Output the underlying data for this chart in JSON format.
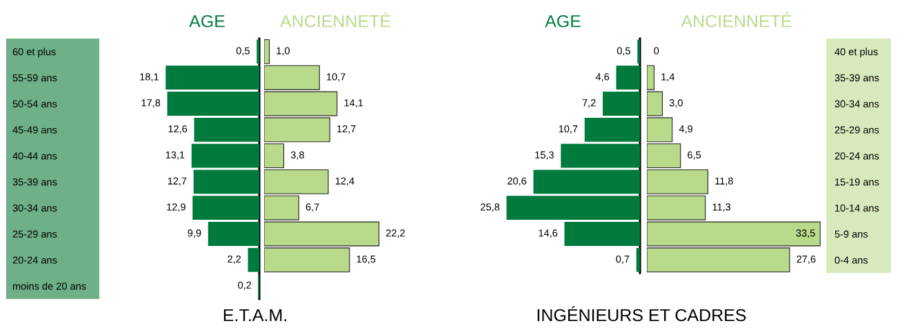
{
  "chart_data": [
    {
      "type": "bar",
      "orientation": "horizontal",
      "title": "AGE",
      "xlabel": "E.T.A.M.",
      "tick_labels": "y",
      "categories": [
        "60 et plus",
        "55-59 ans",
        "50-54 ans",
        "45-49 ans",
        "40-44 ans",
        "35-39 ans",
        "30-34 ans",
        "25-29 ans",
        "20-24 ans",
        "moins de 20 ans"
      ],
      "series": [
        {
          "color": "#007a3d",
          "values": [
            0.5,
            18.1,
            17.8,
            12.6,
            13.1,
            12.7,
            12.9,
            9.9,
            2.2,
            0.2
          ],
          "value_labels": [
            "0,5",
            "18,1",
            "17,8",
            "12,6",
            "13,1",
            "12,7",
            "12,9",
            "9,9",
            "2,2",
            "0,2"
          ]
        }
      ]
    },
    {
      "type": "bar",
      "orientation": "horizontal",
      "title": "ANCIENNETÉ",
      "tick_labels": false,
      "categories": [
        null,
        null,
        null,
        null,
        null,
        null,
        null,
        null,
        null,
        null
      ],
      "series": [
        {
          "color": "#b9da8b",
          "values": [
            1.0,
            10.7,
            14.1,
            12.7,
            3.8,
            12.4,
            6.7,
            22.2,
            16.5,
            null
          ],
          "value_labels": [
            "1,0",
            "10,7",
            "14,1",
            "12,7",
            "3,8",
            "12,4",
            "6,7",
            "22,2",
            "16,5",
            null
          ]
        }
      ]
    },
    {
      "type": "bar",
      "orientation": "horizontal",
      "title": "AGE",
      "xlabel": "INGÉNIEURS ET CADRES",
      "tick_labels": "y",
      "categories": [
        "40 et plus",
        "35-39 ans",
        "30-34 ans",
        "25-29 ans",
        "20-24 ans",
        "15-19 ans",
        "10-14 ans",
        "5-9 ans",
        "0-4 ans"
      ],
      "series": [
        {
          "color": "#007a3d",
          "values": [
            0.5,
            4.6,
            7.2,
            10.7,
            15.3,
            20.6,
            25.8,
            14.6,
            0.7
          ],
          "value_labels": [
            "0,5",
            "4,6",
            "7,2",
            "10,7",
            "15,3",
            "20,6",
            "25,8",
            "14,6",
            "0,7"
          ]
        }
      ]
    },
    {
      "type": "bar",
      "orientation": "horizontal",
      "title": "ANCIENNETÉ",
      "tick_labels": false,
      "categories": [
        null,
        null,
        null,
        null,
        null,
        null,
        null,
        null,
        null
      ],
      "series": [
        {
          "color": "#b9da8b",
          "values": [
            0,
            1.4,
            3.0,
            4.9,
            6.5,
            11.8,
            11.3,
            33.5,
            27.6
          ],
          "value_labels": [
            "0",
            "1,4",
            "3,0",
            "4,9",
            "6,5",
            "11,8",
            "11,3",
            "33,5",
            "27,6"
          ]
        }
      ]
    }
  ]
}
